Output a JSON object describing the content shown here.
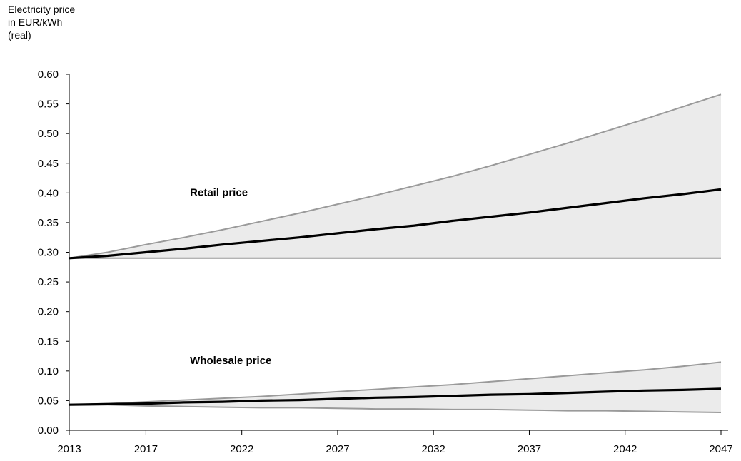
{
  "chart_data": {
    "type": "area",
    "ylabel_lines": [
      "Electricity price",
      "in EUR/kWh",
      "(real)"
    ],
    "xlabel": "",
    "ylim": [
      0,
      0.6
    ],
    "yticks": [
      0.0,
      0.05,
      0.1,
      0.15,
      0.2,
      0.25,
      0.3,
      0.35,
      0.4,
      0.45,
      0.5,
      0.55,
      0.6
    ],
    "xlim": [
      2013,
      2047
    ],
    "xticks": [
      2013,
      2017,
      2022,
      2027,
      2032,
      2037,
      2042,
      2047
    ],
    "grid": false,
    "annotations": [
      {
        "text": "Retail price",
        "x": 2019.3,
        "y": 0.395
      },
      {
        "text": "Wholesale price",
        "x": 2019.3,
        "y": 0.112
      }
    ],
    "groups": [
      {
        "label": "Retail price",
        "band_color": "#ebebeb",
        "x": [
          2013,
          2015,
          2017,
          2019,
          2021,
          2023,
          2025,
          2027,
          2029,
          2031,
          2033,
          2035,
          2037,
          2039,
          2041,
          2043,
          2045,
          2047
        ],
        "upper": [
          0.29,
          0.3,
          0.313,
          0.325,
          0.338,
          0.352,
          0.366,
          0.381,
          0.396,
          0.412,
          0.428,
          0.446,
          0.465,
          0.484,
          0.504,
          0.524,
          0.545,
          0.566
        ],
        "central": [
          0.29,
          0.294,
          0.3,
          0.306,
          0.313,
          0.319,
          0.325,
          0.332,
          0.339,
          0.345,
          0.353,
          0.36,
          0.367,
          0.375,
          0.383,
          0.391,
          0.398,
          0.406
        ],
        "lower": [
          0.29,
          0.29,
          0.29,
          0.29,
          0.29,
          0.29,
          0.29,
          0.29,
          0.29,
          0.29,
          0.29,
          0.29,
          0.29,
          0.29,
          0.29,
          0.29,
          0.29,
          0.29
        ]
      },
      {
        "label": "Wholesale price",
        "band_color": "#ebebeb",
        "x": [
          2013,
          2015,
          2017,
          2019,
          2021,
          2023,
          2025,
          2027,
          2029,
          2031,
          2033,
          2035,
          2037,
          2039,
          2041,
          2043,
          2045,
          2047
        ],
        "upper": [
          0.043,
          0.045,
          0.048,
          0.051,
          0.054,
          0.057,
          0.061,
          0.065,
          0.069,
          0.073,
          0.077,
          0.082,
          0.087,
          0.092,
          0.097,
          0.102,
          0.108,
          0.115
        ],
        "central": [
          0.043,
          0.044,
          0.045,
          0.047,
          0.048,
          0.05,
          0.051,
          0.053,
          0.055,
          0.056,
          0.058,
          0.06,
          0.061,
          0.063,
          0.065,
          0.067,
          0.068,
          0.07
        ],
        "lower": [
          0.043,
          0.043,
          0.041,
          0.04,
          0.039,
          0.038,
          0.038,
          0.037,
          0.036,
          0.036,
          0.035,
          0.035,
          0.034,
          0.033,
          0.033,
          0.032,
          0.031,
          0.03
        ]
      }
    ],
    "colors": {
      "band_fill": "#ebebeb",
      "band_edge": "#9a9a9a",
      "central_line": "#000000",
      "axis": "#000000"
    }
  }
}
